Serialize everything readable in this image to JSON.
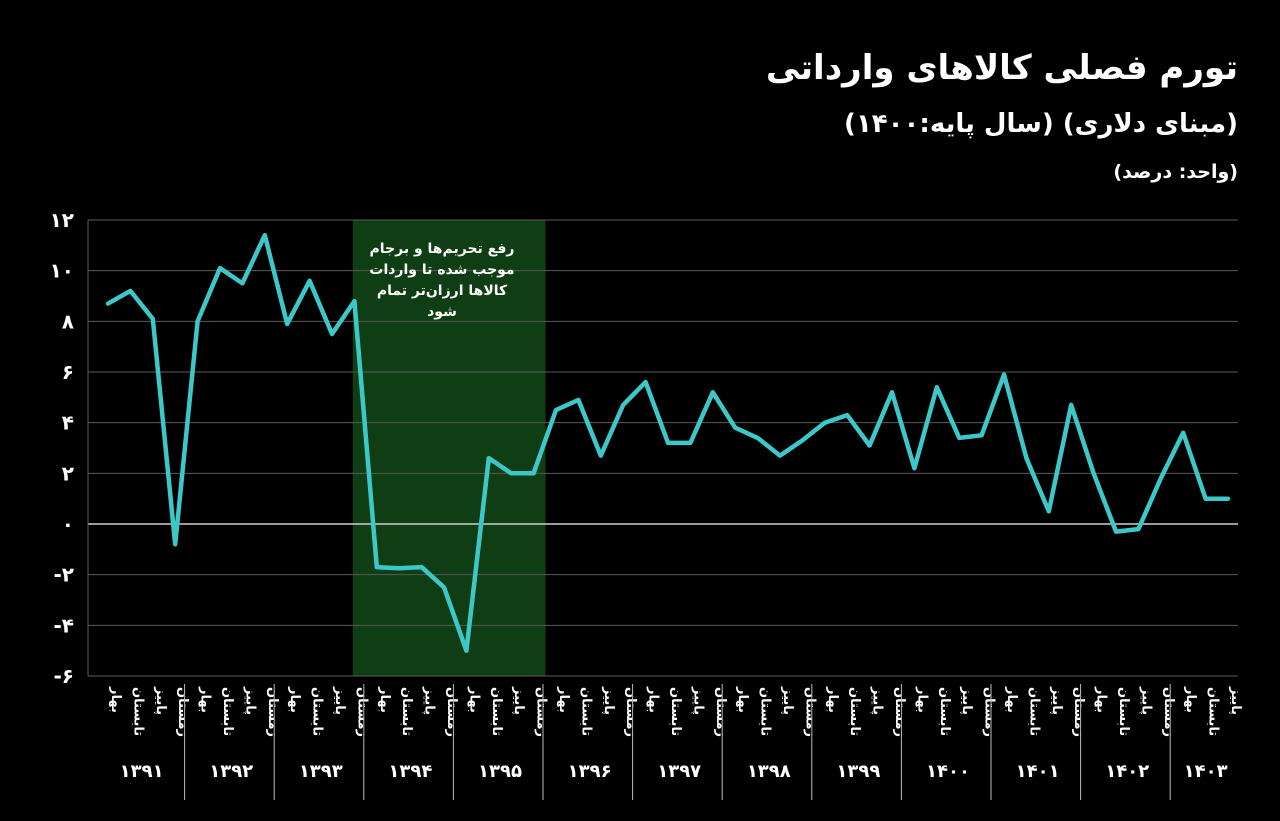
{
  "header": {
    "title": "تورم فصلی کالاهای وارداتی",
    "subtitle": "(مبنای دلاری) (سال پایه:۱۴۰۰)",
    "unit": "(واحد: درصد)"
  },
  "annotation": {
    "lines": [
      "رفع تحریم‌ها و برجام",
      "موجب شده تا واردات",
      "کالاها ارزان‌تر تمام",
      "شود"
    ],
    "highlight_color": "#0f3d14"
  },
  "colors": {
    "line": "#3cc8c8",
    "grid": "#5a5a5a",
    "zero_line": "#cfcfcf",
    "background": "#000000",
    "text": "#ffffff"
  },
  "chart_data": {
    "type": "line",
    "title": "تورم فصلی کالاهای وارداتی",
    "ylim": [
      -6,
      12
    ],
    "yticks": [
      12,
      10,
      8,
      6,
      4,
      2,
      0,
      -2,
      -4,
      -6
    ],
    "ytick_labels": [
      "۱۲",
      "۱۰",
      "۸",
      "۶",
      "۴",
      "۲",
      "۰",
      "-۲",
      "-۴",
      "-۶"
    ],
    "grid": true,
    "years": [
      {
        "label": "۱۳۹۱",
        "quarters": [
          "بهار",
          "تابستان",
          "پاییز",
          "زمستان"
        ]
      },
      {
        "label": "۱۳۹۲",
        "quarters": [
          "بهار",
          "تابستان",
          "پاییز",
          "زمستان"
        ]
      },
      {
        "label": "۱۳۹۳",
        "quarters": [
          "بهار",
          "تابستان",
          "پاییز",
          "زمستان"
        ]
      },
      {
        "label": "۱۳۹۴",
        "quarters": [
          "بهار",
          "تابستان",
          "پاییز",
          "زمستان"
        ]
      },
      {
        "label": "۱۳۹۵",
        "quarters": [
          "بهار",
          "تابستان",
          "پاییز",
          "زمستان"
        ]
      },
      {
        "label": "۱۳۹۶",
        "quarters": [
          "بهار",
          "تابستان",
          "پاییز",
          "زمستان"
        ]
      },
      {
        "label": "۱۳۹۷",
        "quarters": [
          "بهار",
          "تابستان",
          "پاییز",
          "زمستان"
        ]
      },
      {
        "label": "۱۳۹۸",
        "quarters": [
          "بهار",
          "تابستان",
          "پاییز",
          "زمستان"
        ]
      },
      {
        "label": "۱۳۹۹",
        "quarters": [
          "بهار",
          "تابستان",
          "پاییز",
          "زمستان"
        ]
      },
      {
        "label": "۱۴۰۰",
        "quarters": [
          "بهار",
          "تابستان",
          "پاییز",
          "زمستان"
        ]
      },
      {
        "label": "۱۴۰۱",
        "quarters": [
          "بهار",
          "تابستان",
          "پاییز",
          "زمستان"
        ]
      },
      {
        "label": "۱۴۰۲",
        "quarters": [
          "بهار",
          "تابستان",
          "پاییز",
          "زمستان"
        ]
      },
      {
        "label": "۱۴۰۳",
        "quarters": [
          "بهار",
          "تابستان",
          "پاییز"
        ]
      }
    ],
    "highlight_range": {
      "from": "۱۳۹۴ بهار",
      "to": "۱۳۹۵ زمستان"
    },
    "series": [
      {
        "values": [
          8.7,
          9.2,
          8.1,
          -0.8,
          8.0,
          10.1,
          9.5,
          11.4,
          7.9,
          9.6,
          7.5,
          8.8,
          -1.7,
          -1.75,
          -1.7,
          -2.5,
          -5.0,
          2.6,
          2.0,
          2.0,
          4.5,
          4.9,
          2.7,
          4.7,
          5.6,
          3.2,
          3.2,
          5.2,
          3.8,
          3.4,
          2.7,
          3.3,
          4.0,
          4.3,
          3.1,
          5.2,
          2.2,
          5.4,
          3.4,
          3.5,
          5.9,
          2.6,
          0.5,
          4.7,
          2.0,
          -0.3,
          -0.2,
          1.8,
          3.6,
          1.0,
          1.0
        ]
      }
    ]
  }
}
